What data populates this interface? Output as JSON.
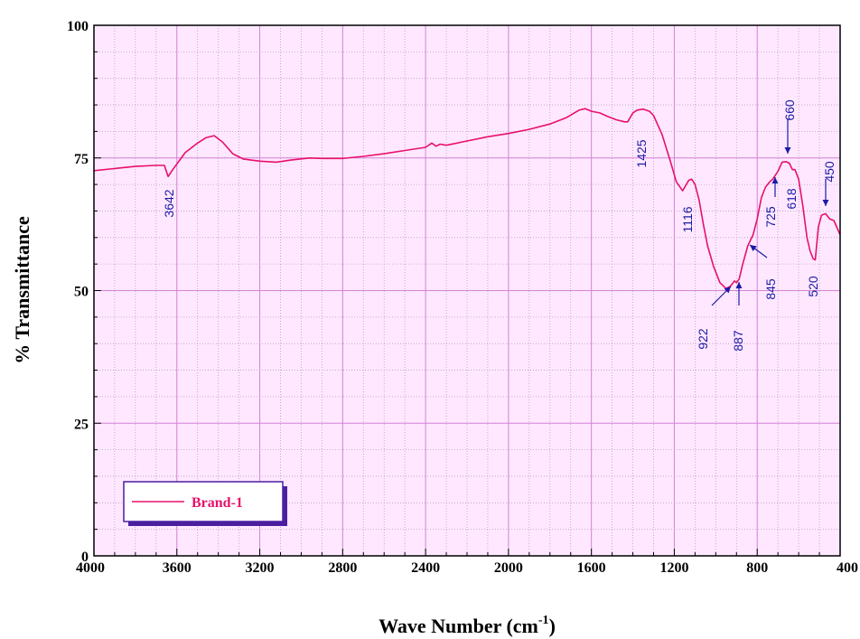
{
  "chart_data": {
    "type": "line",
    "title": "",
    "xlabel": "Wave Number (cm",
    "xlabel_sup": "-1",
    "xlabel_close": ")",
    "ylabel": "% Transmittance",
    "xlim": [
      4000,
      400
    ],
    "ylim": [
      0,
      100
    ],
    "x_ticks": [
      "4000",
      "3600",
      "3200",
      "2800",
      "2400",
      "2000",
      "1600",
      "1200",
      "800",
      "400"
    ],
    "y_ticks": [
      "0",
      "25",
      "50",
      "75",
      "100"
    ],
    "grid": true,
    "legend_position": "bottom-left",
    "series": [
      {
        "name": "Brand-1",
        "color": "#e8106a",
        "x": [
          4000,
          3900,
          3800,
          3700,
          3660,
          3642,
          3620,
          3560,
          3500,
          3460,
          3420,
          3380,
          3330,
          3280,
          3200,
          3120,
          3050,
          2960,
          2900,
          2800,
          2700,
          2600,
          2500,
          2400,
          2370,
          2350,
          2330,
          2300,
          2200,
          2100,
          2000,
          1900,
          1800,
          1720,
          1660,
          1630,
          1600,
          1560,
          1520,
          1480,
          1440,
          1425,
          1400,
          1380,
          1350,
          1320,
          1300,
          1260,
          1220,
          1190,
          1160,
          1130,
          1116,
          1100,
          1080,
          1060,
          1040,
          1010,
          980,
          950,
          930,
          922,
          910,
          900,
          887,
          870,
          845,
          820,
          800,
          780,
          760,
          740,
          725,
          700,
          680,
          660,
          645,
          630,
          618,
          600,
          580,
          560,
          545,
          530,
          520,
          505,
          490,
          470,
          450,
          430,
          400
        ],
        "y": [
          72.6,
          73.0,
          73.4,
          73.6,
          73.6,
          71.5,
          72.8,
          76.0,
          77.8,
          78.8,
          79.2,
          78.0,
          75.8,
          74.8,
          74.4,
          74.2,
          74.6,
          75.0,
          74.9,
          74.9,
          75.3,
          75.8,
          76.4,
          77.0,
          77.8,
          77.2,
          77.6,
          77.4,
          78.2,
          79.0,
          79.6,
          80.4,
          81.4,
          82.6,
          84.0,
          84.3,
          83.8,
          83.5,
          82.8,
          82.2,
          81.8,
          81.8,
          83.5,
          84.0,
          84.2,
          83.8,
          83.0,
          79.5,
          74.5,
          70.5,
          68.8,
          70.8,
          71.0,
          70.0,
          67.0,
          62.5,
          58.5,
          54.5,
          51.5,
          50.4,
          50.8,
          51.2,
          51.8,
          51.5,
          52.2,
          55.0,
          58.5,
          60.5,
          63.5,
          67.5,
          69.5,
          70.5,
          71.0,
          72.5,
          74.2,
          74.3,
          74.0,
          72.8,
          72.8,
          71.0,
          66.0,
          60.0,
          57.5,
          56.0,
          55.8,
          62.0,
          64.2,
          64.5,
          63.5,
          63.2,
          60.5
        ]
      }
    ],
    "annotations": [
      {
        "label": "3642",
        "x": 3642,
        "y": 71.5,
        "arrow": false
      },
      {
        "label": "1425",
        "x": 1425,
        "y": 81.8,
        "arrow": false
      },
      {
        "label": "1116",
        "x": 1116,
        "y": 68.8,
        "arrow": false
      },
      {
        "label": "922",
        "x": 922,
        "y": 50.4,
        "arrow": true
      },
      {
        "label": "887",
        "x": 887,
        "y": 51.5,
        "arrow": true
      },
      {
        "label": "845",
        "x": 845,
        "y": 58.5,
        "arrow": true
      },
      {
        "label": "725",
        "x": 725,
        "y": 71.0,
        "arrow": true
      },
      {
        "label": "660",
        "x": 660,
        "y": 74.3,
        "arrow": true
      },
      {
        "label": "618",
        "x": 618,
        "y": 72.8,
        "arrow": false
      },
      {
        "label": "520",
        "x": 520,
        "y": 55.8,
        "arrow": false
      },
      {
        "label": "450",
        "x": 450,
        "y": 63.5,
        "arrow": true
      }
    ]
  }
}
